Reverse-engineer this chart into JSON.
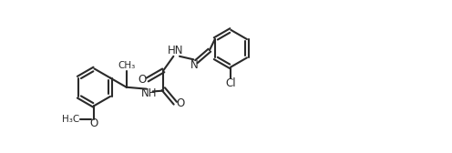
{
  "bg_color": "#ffffff",
  "line_color": "#2a2a2a",
  "line_width": 1.5,
  "font_size": 8.5,
  "figsize": [
    4.96,
    1.68
  ],
  "dpi": 100,
  "xlim": [
    0,
    10.5
  ],
  "ylim": [
    -0.5,
    3.8
  ]
}
